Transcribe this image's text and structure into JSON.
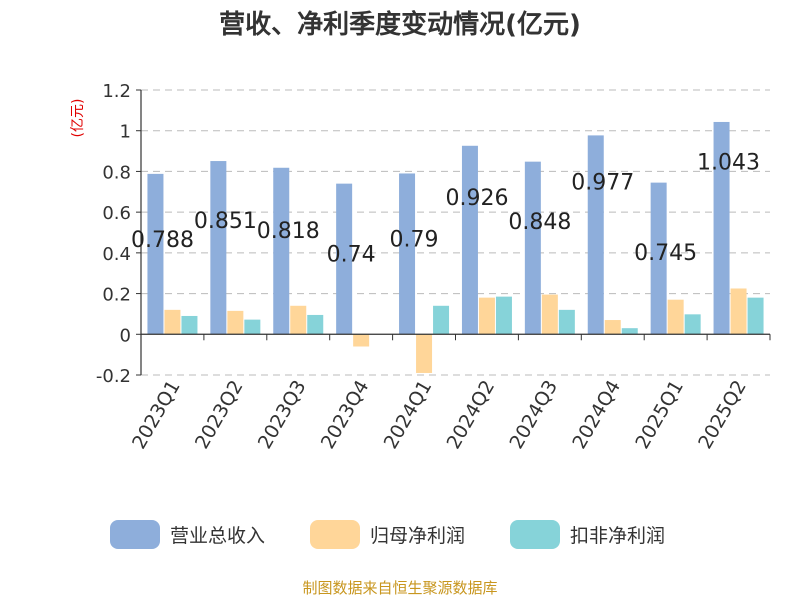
{
  "chart_data": {
    "type": "bar",
    "title": "营收、净利季度变动情况(亿元)",
    "ylabel": "(亿元)",
    "xlabel": "",
    "ylim": [
      -0.2,
      1.2
    ],
    "yticks": [
      "-0.2",
      "0",
      "0.2",
      "0.4",
      "0.6",
      "0.8",
      "1",
      "1.2"
    ],
    "grid": true,
    "legend_position": "bottom",
    "categories": [
      "2023Q1",
      "2023Q2",
      "2023Q3",
      "2023Q4",
      "2024Q1",
      "2024Q2",
      "2024Q3",
      "2024Q4",
      "2025Q1",
      "2025Q2"
    ],
    "series": [
      {
        "name": "营业总收入",
        "color": "#8eaedb",
        "values": [
          0.788,
          0.851,
          0.818,
          0.74,
          0.79,
          0.926,
          0.848,
          0.977,
          0.745,
          1.043
        ]
      },
      {
        "name": "归母净利润",
        "color": "#ffd699",
        "values": [
          0.12,
          0.115,
          0.14,
          -0.06,
          -0.19,
          0.18,
          0.195,
          0.07,
          0.17,
          0.225
        ]
      },
      {
        "name": "扣非净利润",
        "color": "#86d3d9",
        "values": [
          0.09,
          0.072,
          0.095,
          0.0,
          0.14,
          0.185,
          0.12,
          0.03,
          0.098,
          0.18
        ]
      }
    ],
    "data_labels": [
      "0.788",
      "0.851",
      "0.818",
      "0.74",
      "0.79",
      "0.926",
      "0.848",
      "0.977",
      "0.745",
      "1.043"
    ],
    "source": "制图数据来自恒生聚源数据库"
  }
}
